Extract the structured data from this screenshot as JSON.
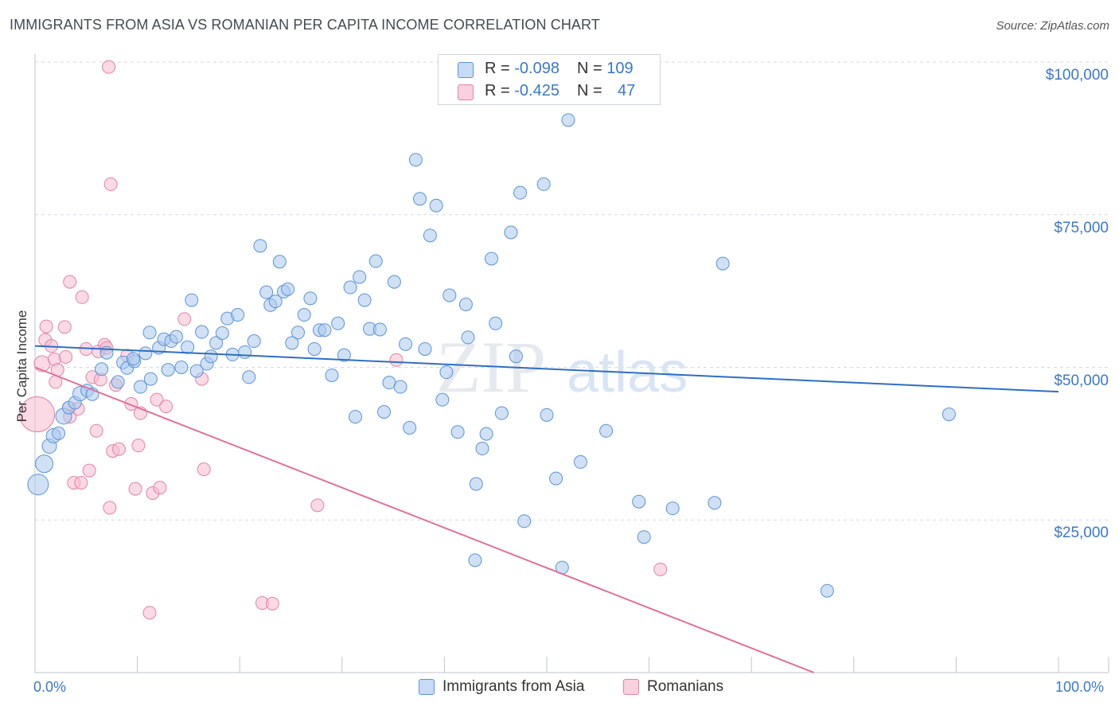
{
  "header": {
    "title": "IMMIGRANTS FROM ASIA VS ROMANIAN PER CAPITA INCOME CORRELATION CHART",
    "source": "Source: ZipAtlas.com"
  },
  "legend": {
    "rows": [
      {
        "r_label": "R = ",
        "r_value": "-0.098",
        "n_label": "N = ",
        "n_value": "109"
      },
      {
        "r_label": "R = ",
        "r_value": "-0.425",
        "n_label": "N = ",
        "n_value": "47"
      }
    ]
  },
  "colors": {
    "blue_fill": "#a9c8ef",
    "blue_stroke": "#5b93d6",
    "blue_line": "#2f6ec4",
    "pink_fill": "#f7bcd0",
    "pink_stroke": "#e482a6",
    "pink_line": "#e0709b",
    "grid": "#d5dae1",
    "tick_text": "#3a78c9"
  },
  "chart_data": {
    "type": "scatter",
    "title": "IMMIGRANTS FROM ASIA VS ROMANIAN PER CAPITA INCOME CORRELATION CHART",
    "xlabel": "",
    "ylabel": "Per Capita Income",
    "xlim": [
      0,
      100
    ],
    "ylim": [
      0,
      100000
    ],
    "x_tick_labels": [
      "0.0%",
      "100.0%"
    ],
    "y_ticks": [
      25000,
      50000,
      75000,
      100000
    ],
    "y_tick_labels": [
      "$25,000",
      "$50,000",
      "$75,000",
      "$100,000"
    ],
    "grid": true,
    "legend_position": "top-center",
    "watermark": "ZIPatlas",
    "series": [
      {
        "name": "Immigrants from Asia",
        "color": "#a9c8ef",
        "r": -0.098,
        "n": 109,
        "trend": {
          "x": [
            0,
            100
          ],
          "y": [
            53500,
            46000
          ]
        },
        "points": [
          [
            0.3,
            30800,
            13
          ],
          [
            0.9,
            34200,
            11
          ],
          [
            1.4,
            37100,
            9
          ],
          [
            1.8,
            38800,
            9
          ],
          [
            2.3,
            39200,
            8
          ],
          [
            2.8,
            42000,
            10
          ],
          [
            3.3,
            43400,
            8
          ],
          [
            3.9,
            44200,
            8
          ],
          [
            4.4,
            45700,
            9
          ],
          [
            5.1,
            46200,
            8
          ],
          [
            5.6,
            45600,
            8
          ],
          [
            6.5,
            49700,
            8
          ],
          [
            7.0,
            52400,
            8
          ],
          [
            8.1,
            47600,
            8
          ],
          [
            8.6,
            50800,
            8
          ],
          [
            9.0,
            49900,
            8
          ],
          [
            9.7,
            51000,
            8
          ],
          [
            10.3,
            46800,
            8
          ],
          [
            10.8,
            52300,
            8
          ],
          [
            11.3,
            48100,
            8
          ],
          [
            11.2,
            55700,
            8
          ],
          [
            12.1,
            53200,
            8
          ],
          [
            12.6,
            54600,
            8
          ],
          [
            13.0,
            49600,
            8
          ],
          [
            13.3,
            54300,
            8
          ],
          [
            13.8,
            55000,
            8
          ],
          [
            14.3,
            50000,
            8
          ],
          [
            14.9,
            53300,
            8
          ],
          [
            15.3,
            61000,
            8
          ],
          [
            15.8,
            49400,
            8
          ],
          [
            16.3,
            55800,
            8
          ],
          [
            16.8,
            50600,
            8
          ],
          [
            17.2,
            51800,
            8
          ],
          [
            17.7,
            54000,
            8
          ],
          [
            18.3,
            55600,
            8
          ],
          [
            18.8,
            58000,
            8
          ],
          [
            19.3,
            52100,
            8
          ],
          [
            19.8,
            58600,
            8
          ],
          [
            20.5,
            52500,
            8
          ],
          [
            20.9,
            48400,
            8
          ],
          [
            21.4,
            54300,
            8
          ],
          [
            22.0,
            69900,
            8
          ],
          [
            22.6,
            62300,
            8
          ],
          [
            23.0,
            60200,
            8
          ],
          [
            23.5,
            60800,
            8
          ],
          [
            23.9,
            67300,
            8
          ],
          [
            24.3,
            62400,
            8
          ],
          [
            24.7,
            62800,
            8
          ],
          [
            25.1,
            54000,
            8
          ],
          [
            25.7,
            55700,
            8
          ],
          [
            26.3,
            58600,
            8
          ],
          [
            26.9,
            61300,
            8
          ],
          [
            27.3,
            53000,
            8
          ],
          [
            27.8,
            56100,
            8
          ],
          [
            28.3,
            56100,
            8
          ],
          [
            29.0,
            48700,
            8
          ],
          [
            29.6,
            57200,
            8
          ],
          [
            30.2,
            52000,
            8
          ],
          [
            30.8,
            63100,
            8
          ],
          [
            31.3,
            41900,
            8
          ],
          [
            31.7,
            64800,
            8
          ],
          [
            32.2,
            61000,
            8
          ],
          [
            32.7,
            56300,
            8
          ],
          [
            33.3,
            67400,
            8
          ],
          [
            33.7,
            56200,
            8
          ],
          [
            34.1,
            42700,
            8
          ],
          [
            34.6,
            47500,
            8
          ],
          [
            35.1,
            64000,
            8
          ],
          [
            35.7,
            46800,
            8
          ],
          [
            36.2,
            53800,
            8
          ],
          [
            36.6,
            40100,
            8
          ],
          [
            37.2,
            84000,
            8
          ],
          [
            37.6,
            77600,
            8
          ],
          [
            38.1,
            53000,
            8
          ],
          [
            38.6,
            71600,
            8
          ],
          [
            39.2,
            76500,
            8
          ],
          [
            39.8,
            44700,
            8
          ],
          [
            40.2,
            49200,
            8
          ],
          [
            40.5,
            61800,
            8
          ],
          [
            41.3,
            39400,
            8
          ],
          [
            42.1,
            60300,
            8
          ],
          [
            42.3,
            54900,
            8
          ],
          [
            43.1,
            30900,
            8
          ],
          [
            43.7,
            36700,
            8
          ],
          [
            44.1,
            39100,
            8
          ],
          [
            44.6,
            67800,
            8
          ],
          [
            45.0,
            57200,
            8
          ],
          [
            45.6,
            42500,
            8
          ],
          [
            46.5,
            72100,
            8
          ],
          [
            47.0,
            51800,
            8
          ],
          [
            47.4,
            78600,
            8
          ],
          [
            47.8,
            24800,
            8
          ],
          [
            49.7,
            80000,
            8
          ],
          [
            43.0,
            18400,
            8
          ],
          [
            50.0,
            42200,
            8
          ],
          [
            50.9,
            31800,
            8
          ],
          [
            51.5,
            17200,
            8
          ],
          [
            52.1,
            90500,
            8
          ],
          [
            53.3,
            34500,
            8
          ],
          [
            55.8,
            39600,
            8
          ],
          [
            59.0,
            28000,
            8
          ],
          [
            59.5,
            22200,
            8
          ],
          [
            62.3,
            26900,
            8
          ],
          [
            66.4,
            27800,
            8
          ],
          [
            67.2,
            67000,
            8
          ],
          [
            77.4,
            13400,
            8
          ],
          [
            89.3,
            42300,
            8
          ],
          [
            9.6,
            51400,
            8
          ]
        ]
      },
      {
        "name": "Romanians",
        "color": "#f7bcd0",
        "r": -0.425,
        "n": 47,
        "trend": {
          "x": [
            0,
            76.1
          ],
          "y": [
            50000,
            0
          ]
        },
        "points": [
          [
            0.2,
            42300,
            22
          ],
          [
            0.7,
            50600,
            10
          ],
          [
            1.0,
            54500,
            8
          ],
          [
            1.1,
            56700,
            8
          ],
          [
            1.6,
            53500,
            8
          ],
          [
            1.9,
            51300,
            8
          ],
          [
            2.0,
            47600,
            8
          ],
          [
            2.2,
            49600,
            8
          ],
          [
            2.9,
            56600,
            8
          ],
          [
            3.0,
            51700,
            8
          ],
          [
            3.3,
            43400,
            8
          ],
          [
            3.4,
            64000,
            8
          ],
          [
            3.4,
            41900,
            8
          ],
          [
            3.8,
            31100,
            8
          ],
          [
            4.2,
            43200,
            8
          ],
          [
            4.5,
            31100,
            8
          ],
          [
            4.6,
            61500,
            8
          ],
          [
            5.0,
            53000,
            8
          ],
          [
            5.3,
            33100,
            8
          ],
          [
            5.6,
            48400,
            8
          ],
          [
            6.0,
            39600,
            8
          ],
          [
            6.2,
            52600,
            8
          ],
          [
            6.4,
            48000,
            8
          ],
          [
            6.8,
            53700,
            8
          ],
          [
            7.0,
            53200,
            8
          ],
          [
            7.2,
            99200,
            8
          ],
          [
            7.3,
            27000,
            8
          ],
          [
            7.4,
            80000,
            8
          ],
          [
            7.6,
            36300,
            8
          ],
          [
            7.9,
            47100,
            8
          ],
          [
            8.2,
            36600,
            8
          ],
          [
            9.0,
            51900,
            8
          ],
          [
            9.4,
            44000,
            8
          ],
          [
            9.8,
            30100,
            8
          ],
          [
            10.1,
            37200,
            8
          ],
          [
            10.3,
            42500,
            8
          ],
          [
            11.2,
            9800,
            8
          ],
          [
            11.5,
            29400,
            8
          ],
          [
            11.9,
            44700,
            8
          ],
          [
            12.2,
            30300,
            8
          ],
          [
            12.8,
            43600,
            8
          ],
          [
            14.6,
            57900,
            8
          ],
          [
            16.3,
            48100,
            8
          ],
          [
            16.5,
            33300,
            8
          ],
          [
            22.2,
            11400,
            8
          ],
          [
            23.2,
            11300,
            8
          ],
          [
            27.6,
            27400,
            8
          ],
          [
            35.3,
            51200,
            8
          ],
          [
            61.1,
            16900,
            8
          ]
        ]
      }
    ]
  },
  "bottom_legend": [
    {
      "label": "Immigrants from Asia"
    },
    {
      "label": "Romanians"
    }
  ]
}
